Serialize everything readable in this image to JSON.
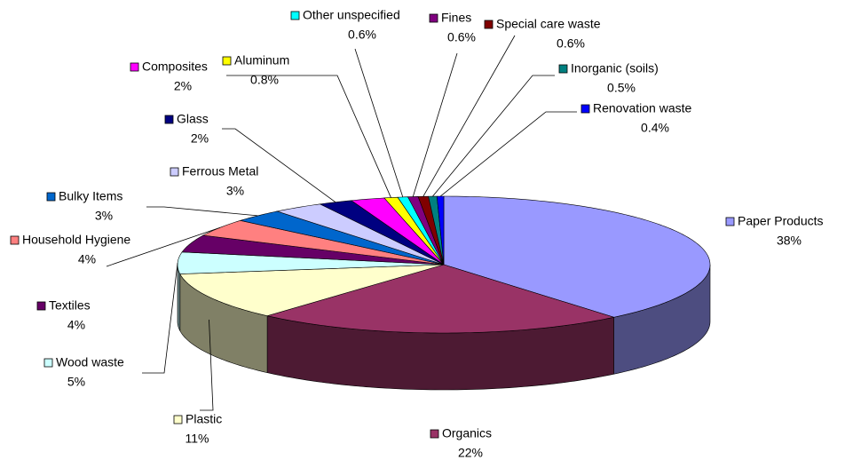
{
  "chart_data": {
    "type": "pie",
    "categories": [
      "Paper Products",
      "Organics",
      "Plastic",
      "Wood waste",
      "Textiles",
      "Household Hygiene",
      "Bulky Items",
      "Ferrous Metal",
      "Glass",
      "Composites",
      "Aluminum",
      "Other unspecified",
      "Fines",
      "Special care waste",
      "Inorganic (soils)",
      "Renovation waste"
    ],
    "values": [
      38,
      22,
      11,
      5,
      4,
      4,
      3,
      3,
      2,
      2,
      0.8,
      0.6,
      0.6,
      0.6,
      0.5,
      0.4
    ],
    "value_labels": [
      "38%",
      "22%",
      "11%",
      "5%",
      "4%",
      "4%",
      "3%",
      "3%",
      "2%",
      "2%",
      "0.8%",
      "0.6%",
      "0.6%",
      "0.6%",
      "0.5%",
      "0.4%"
    ],
    "colors": [
      "#9999ff",
      "#993366",
      "#ffffcc",
      "#ccffff",
      "#660066",
      "#ff8080",
      "#0066cc",
      "#ccccff",
      "#000080",
      "#ff00ff",
      "#ffff00",
      "#00ffff",
      "#800080",
      "#800000",
      "#008080",
      "#0000ff"
    ]
  }
}
